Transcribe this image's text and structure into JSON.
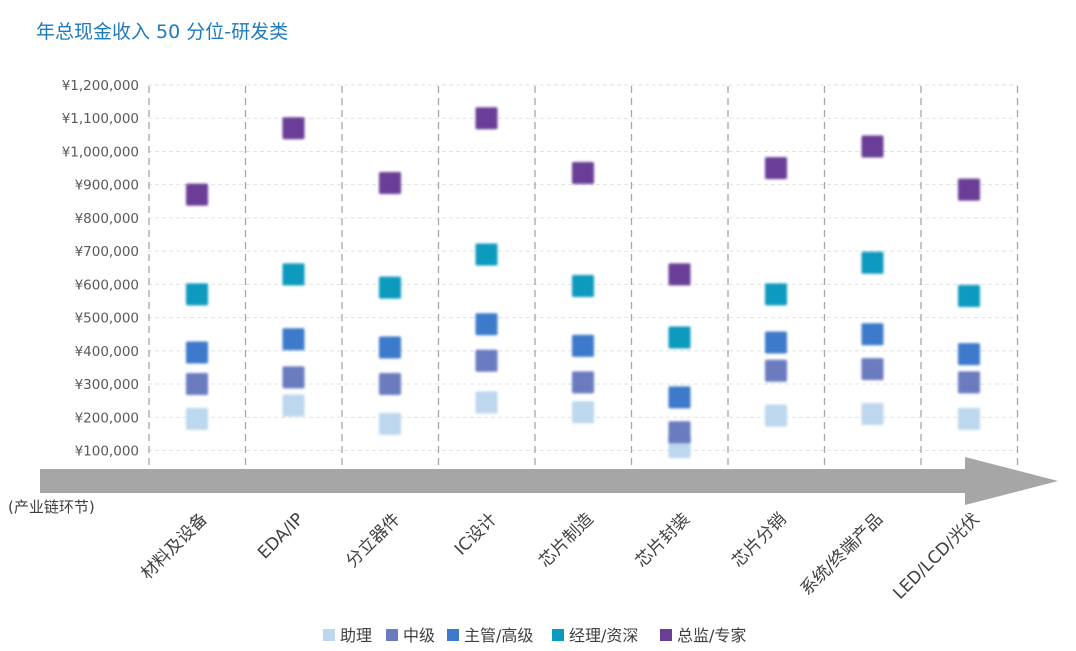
{
  "chart_data": {
    "type": "scatter",
    "title": "年总现金收入 50 分位-研发类",
    "xlabel": "(产业链环节)",
    "ylabel": "",
    "categories": [
      "材料及设备",
      "EDA/IP",
      "分立器件",
      "IC设计",
      "芯片制造",
      "芯片封装",
      "芯片分销",
      "系统/终端产品",
      "LED/LCD/光伏"
    ],
    "ylim": [
      50000,
      1200000
    ],
    "yticks": [
      100000,
      200000,
      300000,
      400000,
      500000,
      600000,
      700000,
      800000,
      900000,
      1000000,
      1100000,
      1200000
    ],
    "ytick_labels": [
      "¥100,000",
      "¥200,000",
      "¥300,000",
      "¥400,000",
      "¥500,000",
      "¥600,000",
      "¥700,000",
      "¥800,000",
      "¥900,000",
      "¥1,000,000",
      "¥1,100,000",
      "¥1,200,000"
    ],
    "grid": true,
    "legend_position": "bottom",
    "series": [
      {
        "name": "助理",
        "color": "#bdd7ee",
        "values": [
          195000,
          235000,
          180000,
          245000,
          215000,
          110000,
          205000,
          210000,
          195000
        ]
      },
      {
        "name": "中级",
        "color": "#6a7bbf",
        "values": [
          300000,
          320000,
          300000,
          370000,
          305000,
          155000,
          340000,
          345000,
          305000
        ]
      },
      {
        "name": "主管/高级",
        "color": "#3d7acb",
        "values": [
          395000,
          435000,
          410000,
          480000,
          415000,
          260000,
          425000,
          450000,
          390000
        ]
      },
      {
        "name": "经理/资深",
        "color": "#0b9abf",
        "values": [
          570000,
          630000,
          590000,
          690000,
          595000,
          440000,
          570000,
          665000,
          565000
        ]
      },
      {
        "name": "总监/专家",
        "color": "#6a3d97",
        "values": [
          870000,
          1070000,
          905000,
          1100000,
          935000,
          630000,
          950000,
          1015000,
          885000
        ]
      }
    ]
  }
}
